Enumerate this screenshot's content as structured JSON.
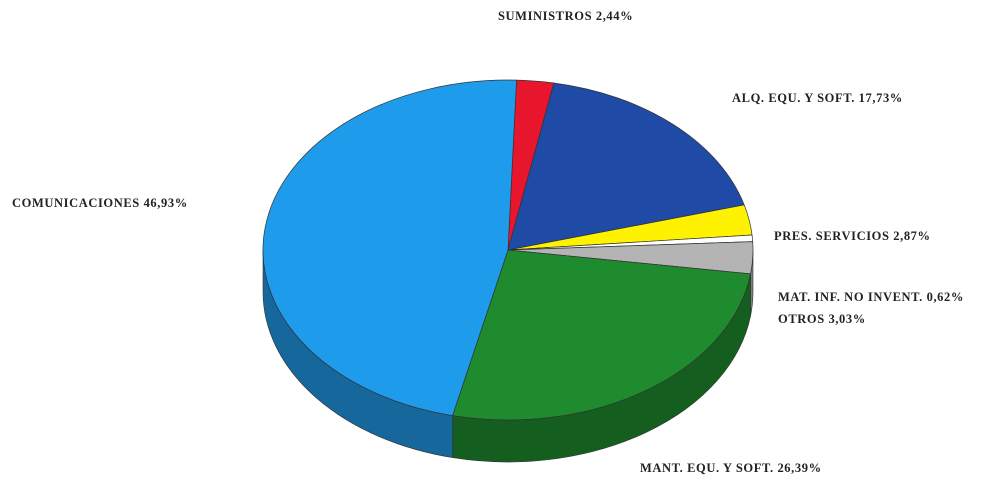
{
  "chart_data": {
    "type": "pie",
    "style": "3d",
    "slices": [
      {
        "name": "SUMINISTROS",
        "value": 2.44,
        "label": "SUMINISTROS 2,44%",
        "color": "#e8162c",
        "side_color": "#a00f1f"
      },
      {
        "name": "ALQ. EQU. Y SOFT.",
        "value": 17.73,
        "label": "ALQ. EQU. Y SOFT. 17,73%",
        "color": "#1f4aa6",
        "side_color": "#142f6b"
      },
      {
        "name": "PRES. SERVICIOS",
        "value": 2.87,
        "label": "PRES. SERVICIOS 2,87%",
        "color": "#fff200",
        "side_color": "#b3a900"
      },
      {
        "name": "MAT. INF. NO INVENT.",
        "value": 0.62,
        "label": "MAT. INF. NO INVENT. 0,62%",
        "color": "#ffffff",
        "side_color": "#d9d9d9"
      },
      {
        "name": "OTROS",
        "value": 3.03,
        "label": "OTROS 3,03%",
        "color": "#b4b4b4",
        "side_color": "#7e7e7e"
      },
      {
        "name": "MANT. EQU. Y SOFT.",
        "value": 26.39,
        "label": "MANT. EQU. Y SOFT. 26,39%",
        "color": "#1e8b2e",
        "side_color": "#145f1f"
      },
      {
        "name": "COMUNICACIONES",
        "value": 46.93,
        "label": "COMUNICACIONES 46,93%",
        "color": "#1e9ceb",
        "side_color": "#15679c"
      }
    ],
    "title": "",
    "legend": "none"
  }
}
